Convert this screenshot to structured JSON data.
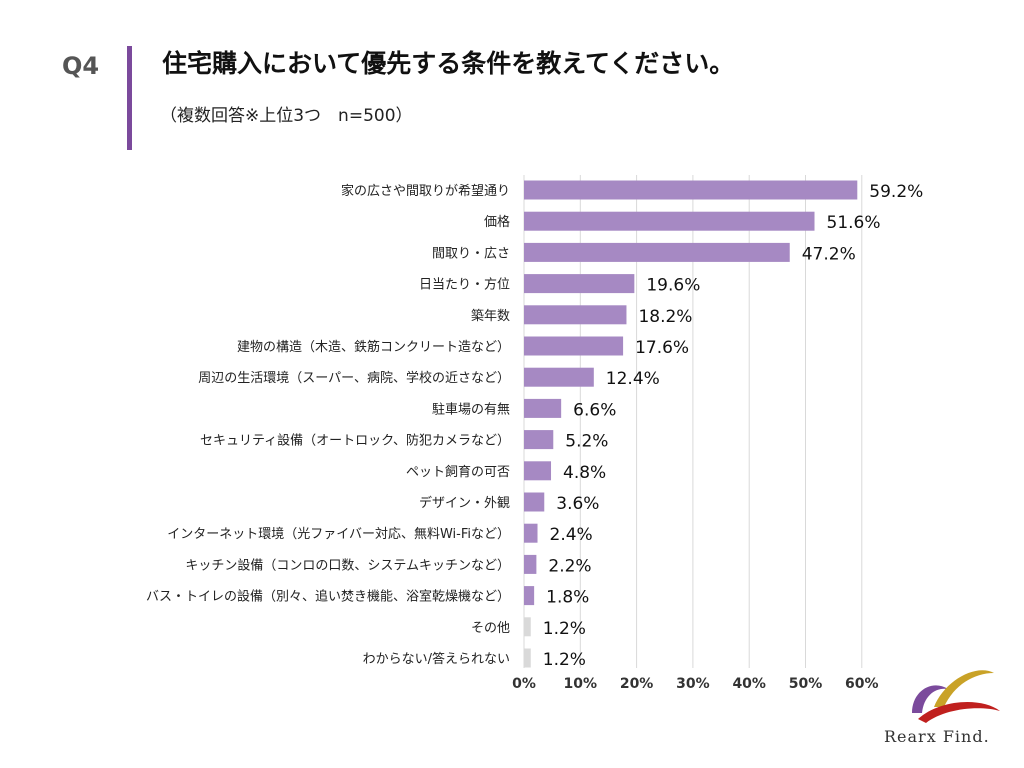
{
  "header": {
    "question_id": "Q4",
    "title": "住宅購入において優先する条件を教えてください。",
    "subtitle": "（複数回答※上位3つ　n=500）"
  },
  "colors": {
    "accent": "#7b4a9c",
    "bar": "#a689c3",
    "bar_muted": "#d9d9d9",
    "grid": "#d9d9d9"
  },
  "chart_data": {
    "type": "bar",
    "orientation": "horizontal",
    "categories": [
      "家の広さや間取りが希望通り",
      "価格",
      "間取り・広さ",
      "日当たり・方位",
      "築年数",
      "建物の構造（木造、鉄筋コンクリート造など）",
      "周辺の生活環境（スーパー、病院、学校の近さなど）",
      "駐車場の有無",
      "セキュリティ設備（オートロック、防犯カメラなど）",
      "ペット飼育の可否",
      "デザイン・外観",
      "インターネット環境（光ファイバー対応、無料Wi-Fiなど）",
      "キッチン設備（コンロの口数、システムキッチンなど）",
      "バス・トイレの設備（別々、追い焚き機能、浴室乾燥機など）",
      "その他",
      "わからない/答えられない"
    ],
    "values": [
      59.2,
      51.6,
      47.2,
      19.6,
      18.2,
      17.6,
      12.4,
      6.6,
      5.2,
      4.8,
      3.6,
      2.4,
      2.2,
      1.8,
      1.2,
      1.2
    ],
    "value_labels": [
      "59.2%",
      "51.6%",
      "47.2%",
      "19.6%",
      "18.2%",
      "17.6%",
      "12.4%",
      "6.6%",
      "5.2%",
      "4.8%",
      "3.6%",
      "2.4%",
      "2.2%",
      "1.8%",
      "1.2%",
      "1.2%"
    ],
    "muted_categories": [
      "その他",
      "わからない/答えられない"
    ],
    "xlim": [
      0,
      60
    ],
    "xticks": [
      "0%",
      "10%",
      "20%",
      "30%",
      "40%",
      "50%",
      "60%"
    ],
    "grid": true,
    "legend": "none"
  },
  "logo": {
    "name": "Rearx Find."
  }
}
